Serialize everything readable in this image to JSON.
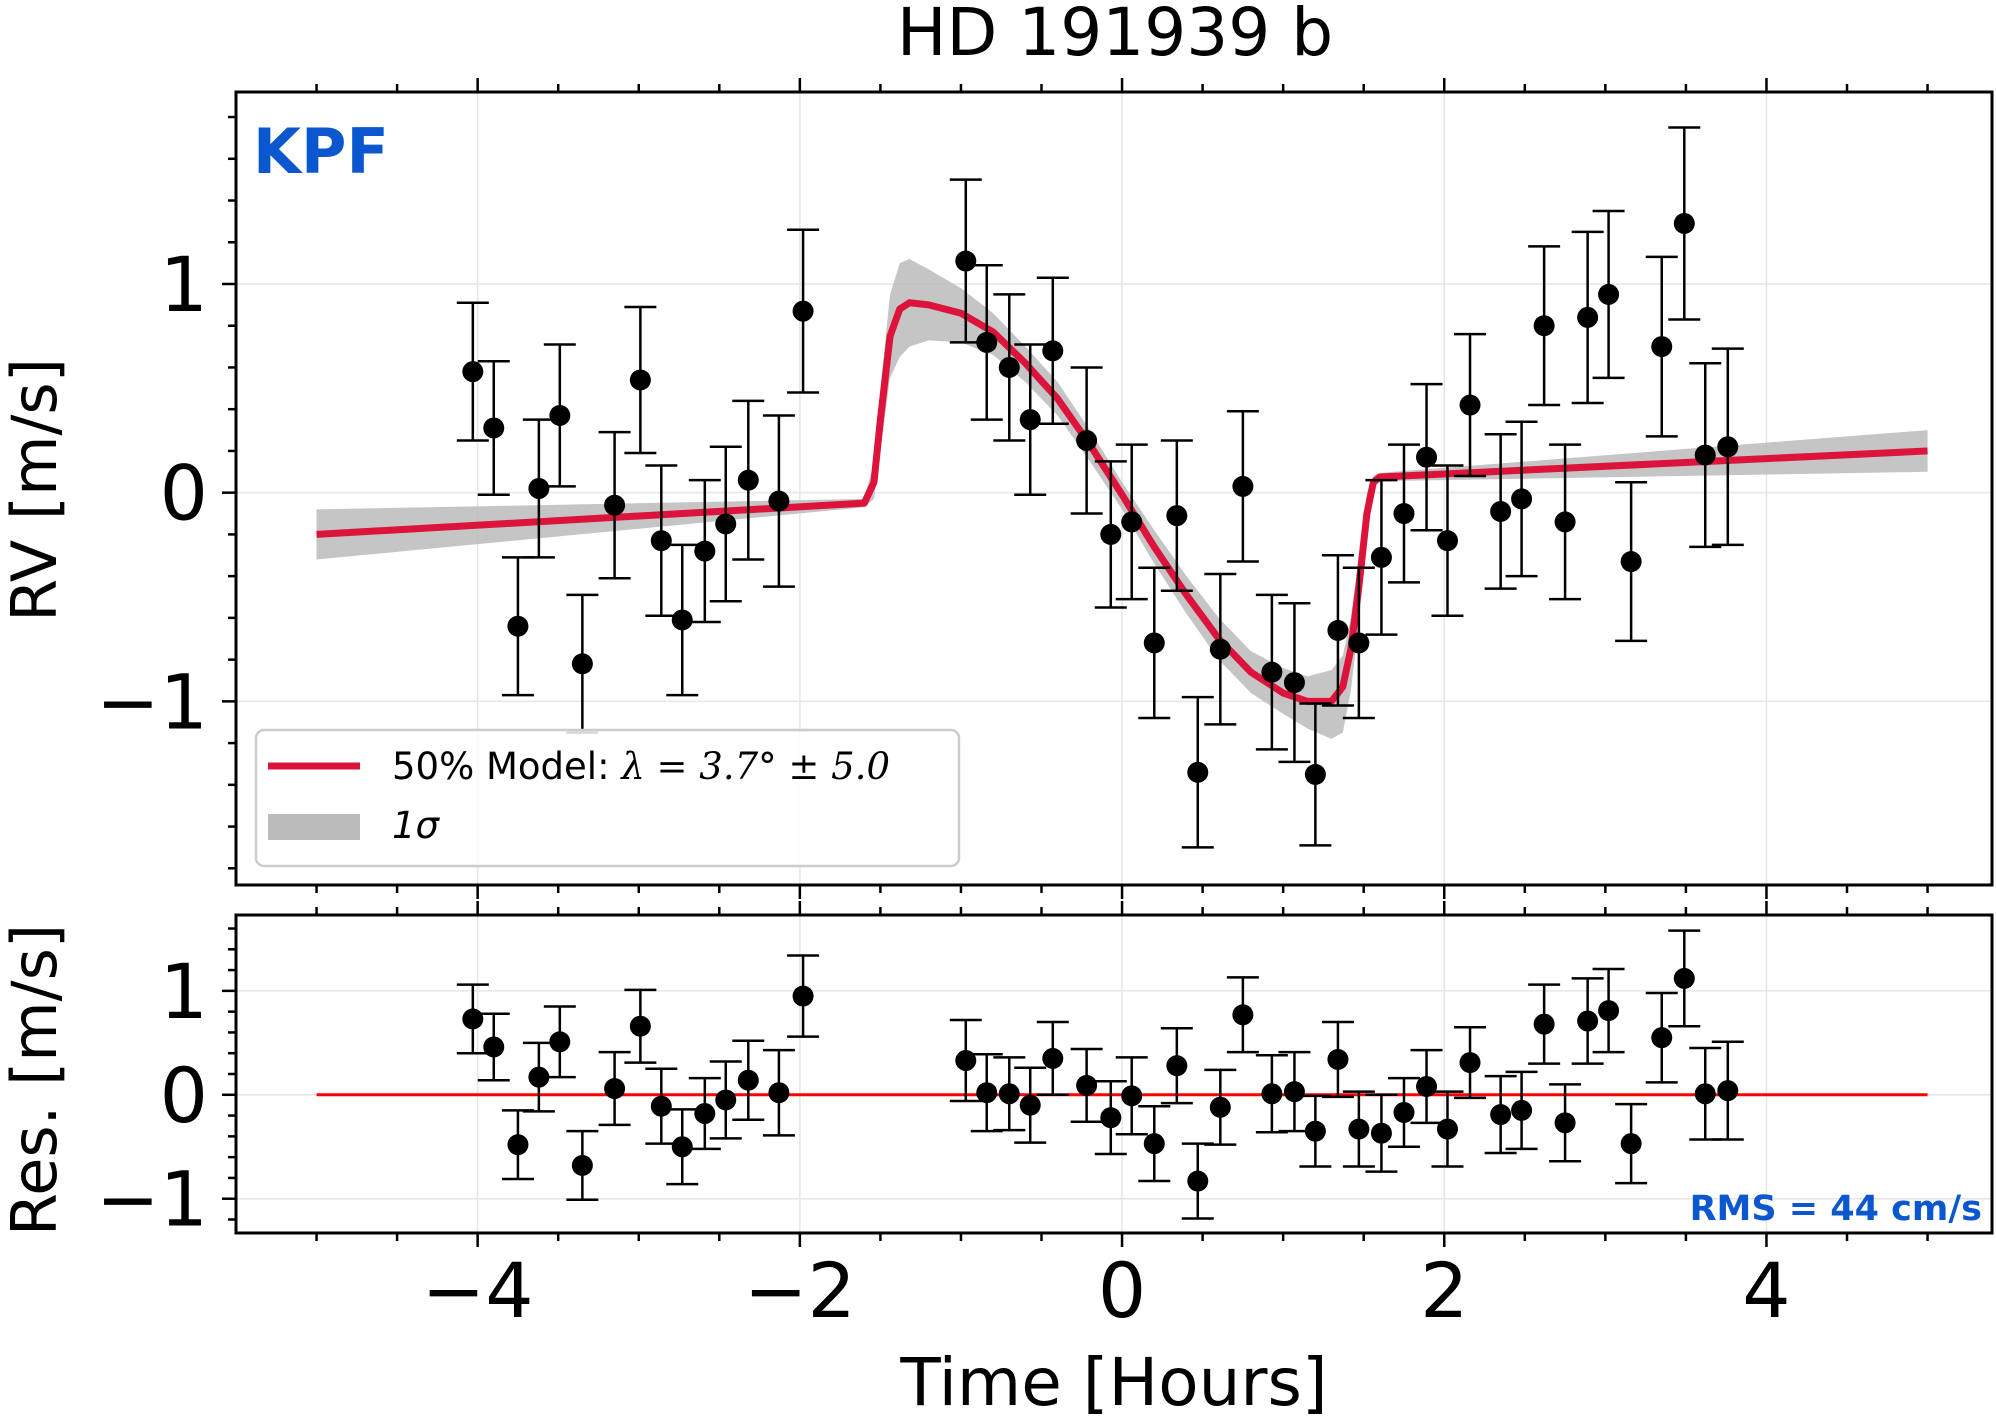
{
  "chart_data": [
    {
      "type": "scatter",
      "panel": "main",
      "title": "HD 191939 b",
      "instrument_label": "KPF",
      "xlabel": "",
      "ylabel": "RV [m/s]",
      "xlim": [
        -5.5,
        5.4
      ],
      "ylim": [
        -1.88,
        1.92
      ],
      "x_ticks": [
        -4,
        -2,
        0,
        2,
        4
      ],
      "y_ticks": [
        -1,
        0,
        1
      ],
      "y_tick_labels": [
        "−1",
        "0",
        "1"
      ],
      "grid": true,
      "legend_position": "lower-left",
      "legend": {
        "model_label_prefix": "50% Model: ",
        "model_label_math": "λ = 3.7° ±  5.0",
        "band_label": "1σ"
      },
      "series": [
        {
          "name": "KPF",
          "color": "#000000",
          "points": [
            {
              "x": -4.03,
              "y": 0.58,
              "err": 0.33
            },
            {
              "x": -3.9,
              "y": 0.31,
              "err": 0.32
            },
            {
              "x": -3.75,
              "y": -0.64,
              "err": 0.33
            },
            {
              "x": -3.62,
              "y": 0.02,
              "err": 0.33
            },
            {
              "x": -3.49,
              "y": 0.37,
              "err": 0.34
            },
            {
              "x": -3.35,
              "y": -0.82,
              "err": 0.33
            },
            {
              "x": -3.15,
              "y": -0.06,
              "err": 0.35
            },
            {
              "x": -2.99,
              "y": 0.54,
              "err": 0.35
            },
            {
              "x": -2.86,
              "y": -0.23,
              "err": 0.36
            },
            {
              "x": -2.73,
              "y": -0.61,
              "err": 0.36
            },
            {
              "x": -2.59,
              "y": -0.28,
              "err": 0.34
            },
            {
              "x": -2.46,
              "y": -0.15,
              "err": 0.37
            },
            {
              "x": -2.32,
              "y": 0.06,
              "err": 0.38
            },
            {
              "x": -2.13,
              "y": -0.04,
              "err": 0.41
            },
            {
              "x": -1.98,
              "y": 0.87,
              "err": 0.39
            },
            {
              "x": -0.97,
              "y": 1.11,
              "err": 0.39
            },
            {
              "x": -0.84,
              "y": 0.72,
              "err": 0.37
            },
            {
              "x": -0.7,
              "y": 0.6,
              "err": 0.35
            },
            {
              "x": -0.57,
              "y": 0.35,
              "err": 0.36
            },
            {
              "x": -0.43,
              "y": 0.68,
              "err": 0.35
            },
            {
              "x": -0.22,
              "y": 0.25,
              "err": 0.35
            },
            {
              "x": -0.07,
              "y": -0.2,
              "err": 0.35
            },
            {
              "x": 0.06,
              "y": -0.14,
              "err": 0.37
            },
            {
              "x": 0.2,
              "y": -0.72,
              "err": 0.36
            },
            {
              "x": 0.34,
              "y": -0.11,
              "err": 0.36
            },
            {
              "x": 0.47,
              "y": -1.34,
              "err": 0.36
            },
            {
              "x": 0.61,
              "y": -0.75,
              "err": 0.36
            },
            {
              "x": 0.75,
              "y": 0.03,
              "err": 0.36
            },
            {
              "x": 0.93,
              "y": -0.86,
              "err": 0.37
            },
            {
              "x": 1.07,
              "y": -0.91,
              "err": 0.38
            },
            {
              "x": 1.2,
              "y": -1.35,
              "err": 0.34
            },
            {
              "x": 1.34,
              "y": -0.66,
              "err": 0.36
            },
            {
              "x": 1.47,
              "y": -0.72,
              "err": 0.36
            },
            {
              "x": 1.61,
              "y": -0.31,
              "err": 0.37
            },
            {
              "x": 1.75,
              "y": -0.1,
              "err": 0.33
            },
            {
              "x": 1.89,
              "y": 0.17,
              "err": 0.35
            },
            {
              "x": 2.02,
              "y": -0.23,
              "err": 0.36
            },
            {
              "x": 2.16,
              "y": 0.42,
              "err": 0.34
            },
            {
              "x": 2.35,
              "y": -0.09,
              "err": 0.37
            },
            {
              "x": 2.48,
              "y": -0.03,
              "err": 0.37
            },
            {
              "x": 2.62,
              "y": 0.8,
              "err": 0.38
            },
            {
              "x": 2.75,
              "y": -0.14,
              "err": 0.37
            },
            {
              "x": 2.89,
              "y": 0.84,
              "err": 0.41
            },
            {
              "x": 3.02,
              "y": 0.95,
              "err": 0.4
            },
            {
              "x": 3.16,
              "y": -0.33,
              "err": 0.38
            },
            {
              "x": 3.35,
              "y": 0.7,
              "err": 0.43
            },
            {
              "x": 3.49,
              "y": 1.29,
              "err": 0.46
            },
            {
              "x": 3.62,
              "y": 0.18,
              "err": 0.44
            },
            {
              "x": 3.76,
              "y": 0.22,
              "err": 0.47
            }
          ]
        },
        {
          "name": "50% Model",
          "color": "#dc143c",
          "line": [
            [
              -5,
              -0.2
            ],
            [
              -1.6,
              -0.05
            ],
            [
              -1.54,
              0.05
            ],
            [
              -1.5,
              0.35
            ],
            [
              -1.44,
              0.75
            ],
            [
              -1.38,
              0.88
            ],
            [
              -1.32,
              0.91
            ],
            [
              -1.2,
              0.9
            ],
            [
              -1.0,
              0.86
            ],
            [
              -0.8,
              0.77
            ],
            [
              -0.6,
              0.62
            ],
            [
              -0.4,
              0.45
            ],
            [
              -0.2,
              0.23
            ],
            [
              0.0,
              -0.01
            ],
            [
              0.2,
              -0.26
            ],
            [
              0.4,
              -0.49
            ],
            [
              0.6,
              -0.7
            ],
            [
              0.8,
              -0.86
            ],
            [
              1.0,
              -0.96
            ],
            [
              1.15,
              -1.0
            ],
            [
              1.3,
              -1.0
            ],
            [
              1.37,
              -0.93
            ],
            [
              1.42,
              -0.75
            ],
            [
              1.47,
              -0.45
            ],
            [
              1.52,
              -0.1
            ],
            [
              1.56,
              0.05
            ],
            [
              1.6,
              0.075
            ],
            [
              5,
              0.2
            ]
          ]
        },
        {
          "name": "1σ",
          "color": "#bbbbbb",
          "band_upper": [
            [
              -5,
              -0.08
            ],
            [
              -1.6,
              -0.03
            ],
            [
              -1.54,
              0.15
            ],
            [
              -1.5,
              0.5
            ],
            [
              -1.44,
              0.95
            ],
            [
              -1.38,
              1.1
            ],
            [
              -1.32,
              1.12
            ],
            [
              -1.2,
              1.07
            ],
            [
              -1.0,
              0.98
            ],
            [
              -0.8,
              0.86
            ],
            [
              -0.6,
              0.7
            ],
            [
              -0.4,
              0.53
            ],
            [
              -0.2,
              0.3
            ],
            [
              0.0,
              0.05
            ],
            [
              0.2,
              -0.18
            ],
            [
              0.4,
              -0.4
            ],
            [
              0.6,
              -0.6
            ],
            [
              0.8,
              -0.76
            ],
            [
              1.0,
              -0.84
            ],
            [
              1.15,
              -0.88
            ],
            [
              1.3,
              -0.85
            ],
            [
              1.37,
              -0.78
            ],
            [
              1.42,
              -0.6
            ],
            [
              1.47,
              -0.3
            ],
            [
              1.52,
              0.0
            ],
            [
              1.56,
              0.08
            ],
            [
              1.6,
              0.095
            ],
            [
              5,
              0.3
            ]
          ],
          "band_lower": [
            [
              -5,
              -0.32
            ],
            [
              -1.6,
              -0.07
            ],
            [
              -1.54,
              -0.03
            ],
            [
              -1.5,
              0.2
            ],
            [
              -1.44,
              0.55
            ],
            [
              -1.38,
              0.65
            ],
            [
              -1.32,
              0.7
            ],
            [
              -1.2,
              0.73
            ],
            [
              -1.0,
              0.72
            ],
            [
              -0.8,
              0.66
            ],
            [
              -0.6,
              0.53
            ],
            [
              -0.4,
              0.37
            ],
            [
              -0.2,
              0.15
            ],
            [
              0.0,
              -0.08
            ],
            [
              0.2,
              -0.34
            ],
            [
              0.4,
              -0.58
            ],
            [
              0.6,
              -0.8
            ],
            [
              0.8,
              -0.96
            ],
            [
              1.0,
              -1.06
            ],
            [
              1.15,
              -1.13
            ],
            [
              1.3,
              -1.18
            ],
            [
              1.37,
              -1.15
            ],
            [
              1.42,
              -0.95
            ],
            [
              1.47,
              -0.62
            ],
            [
              1.52,
              -0.22
            ],
            [
              1.56,
              0.02
            ],
            [
              1.6,
              0.055
            ],
            [
              5,
              0.1
            ]
          ]
        }
      ]
    },
    {
      "type": "scatter",
      "panel": "residuals",
      "xlabel": "Time [Hours]",
      "ylabel": "Res. [m/s]",
      "xlim": [
        -5.5,
        5.4
      ],
      "ylim": [
        -1.33,
        1.73
      ],
      "x_ticks": [
        -4,
        -2,
        0,
        2,
        4
      ],
      "x_tick_labels": [
        "−4",
        "−2",
        "0",
        "2",
        "4"
      ],
      "y_ticks": [
        -1,
        0,
        1
      ],
      "y_tick_labels": [
        "−1",
        "0",
        "1"
      ],
      "grid": true,
      "rms_label": "RMS = 44 cm/s",
      "zero_line": {
        "x": [
          -5,
          5
        ],
        "y": 0,
        "color": "#ff0000"
      },
      "series": [
        {
          "name": "Residuals",
          "color": "#000000",
          "points": [
            {
              "x": -4.03,
              "y": 0.73,
              "err": 0.33
            },
            {
              "x": -3.9,
              "y": 0.46,
              "err": 0.32
            },
            {
              "x": -3.75,
              "y": -0.48,
              "err": 0.33
            },
            {
              "x": -3.62,
              "y": 0.17,
              "err": 0.33
            },
            {
              "x": -3.49,
              "y": 0.51,
              "err": 0.34
            },
            {
              "x": -3.35,
              "y": -0.68,
              "err": 0.33
            },
            {
              "x": -3.15,
              "y": 0.06,
              "err": 0.35
            },
            {
              "x": -2.99,
              "y": 0.66,
              "err": 0.35
            },
            {
              "x": -2.86,
              "y": -0.11,
              "err": 0.36
            },
            {
              "x": -2.73,
              "y": -0.5,
              "err": 0.36
            },
            {
              "x": -2.59,
              "y": -0.18,
              "err": 0.34
            },
            {
              "x": -2.46,
              "y": -0.05,
              "err": 0.37
            },
            {
              "x": -2.32,
              "y": 0.14,
              "err": 0.38
            },
            {
              "x": -2.13,
              "y": 0.02,
              "err": 0.41
            },
            {
              "x": -1.98,
              "y": 0.95,
              "err": 0.39
            },
            {
              "x": -0.97,
              "y": 0.33,
              "err": 0.39
            },
            {
              "x": -0.84,
              "y": 0.02,
              "err": 0.37
            },
            {
              "x": -0.7,
              "y": 0.01,
              "err": 0.35
            },
            {
              "x": -0.57,
              "y": -0.1,
              "err": 0.36
            },
            {
              "x": -0.43,
              "y": 0.35,
              "err": 0.35
            },
            {
              "x": -0.22,
              "y": 0.09,
              "err": 0.35
            },
            {
              "x": -0.07,
              "y": -0.22,
              "err": 0.35
            },
            {
              "x": 0.06,
              "y": -0.01,
              "err": 0.37
            },
            {
              "x": 0.2,
              "y": -0.47,
              "err": 0.36
            },
            {
              "x": 0.34,
              "y": 0.28,
              "err": 0.36
            },
            {
              "x": 0.47,
              "y": -0.83,
              "err": 0.36
            },
            {
              "x": 0.61,
              "y": -0.12,
              "err": 0.36
            },
            {
              "x": 0.75,
              "y": 0.77,
              "err": 0.36
            },
            {
              "x": 0.93,
              "y": 0.01,
              "err": 0.37
            },
            {
              "x": 1.07,
              "y": 0.03,
              "err": 0.38
            },
            {
              "x": 1.2,
              "y": -0.35,
              "err": 0.34
            },
            {
              "x": 1.34,
              "y": 0.34,
              "err": 0.36
            },
            {
              "x": 1.47,
              "y": -0.33,
              "err": 0.36
            },
            {
              "x": 1.61,
              "y": -0.37,
              "err": 0.37
            },
            {
              "x": 1.75,
              "y": -0.17,
              "err": 0.33
            },
            {
              "x": 1.89,
              "y": 0.08,
              "err": 0.35
            },
            {
              "x": 2.02,
              "y": -0.33,
              "err": 0.36
            },
            {
              "x": 2.16,
              "y": 0.31,
              "err": 0.34
            },
            {
              "x": 2.35,
              "y": -0.19,
              "err": 0.37
            },
            {
              "x": 2.48,
              "y": -0.15,
              "err": 0.37
            },
            {
              "x": 2.62,
              "y": 0.68,
              "err": 0.38
            },
            {
              "x": 2.75,
              "y": -0.27,
              "err": 0.37
            },
            {
              "x": 2.89,
              "y": 0.71,
              "err": 0.41
            },
            {
              "x": 3.02,
              "y": 0.81,
              "err": 0.4
            },
            {
              "x": 3.16,
              "y": -0.47,
              "err": 0.38
            },
            {
              "x": 3.35,
              "y": 0.55,
              "err": 0.43
            },
            {
              "x": 3.49,
              "y": 1.12,
              "err": 0.46
            },
            {
              "x": 3.62,
              "y": 0.01,
              "err": 0.44
            },
            {
              "x": 3.76,
              "y": 0.04,
              "err": 0.47
            }
          ]
        }
      ]
    }
  ],
  "colors": {
    "model": "#dc143c",
    "band": "#bbbbbb",
    "instrument_label": "#0b57d0",
    "zero_line": "#ff0000",
    "points": "#000000"
  }
}
